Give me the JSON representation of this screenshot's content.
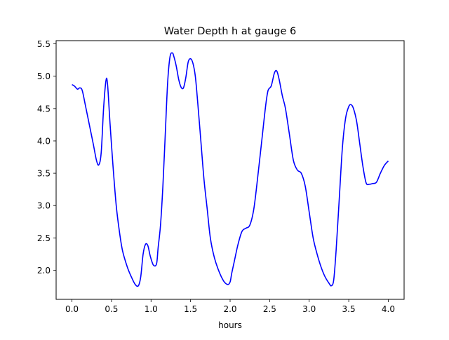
{
  "chart_data": {
    "type": "line",
    "title": "Water Depth h at gauge 6",
    "xlabel": "hours",
    "ylabel": "",
    "xlim": [
      -0.2,
      4.2
    ],
    "ylim": [
      1.55,
      5.55
    ],
    "xticks": [
      0.0,
      0.5,
      1.0,
      1.5,
      2.0,
      2.5,
      3.0,
      3.5,
      4.0
    ],
    "xtick_labels": [
      "0.0",
      "0.5",
      "1.0",
      "1.5",
      "2.0",
      "2.5",
      "3.0",
      "3.5",
      "4.0"
    ],
    "yticks": [
      2.0,
      2.5,
      3.0,
      3.5,
      4.0,
      4.5,
      5.0,
      5.5
    ],
    "ytick_labels": [
      "2.0",
      "2.5",
      "3.0",
      "3.5",
      "4.0",
      "4.5",
      "5.0",
      "5.5"
    ],
    "grid": false,
    "series": [
      {
        "color": "#0000ff",
        "x": [
          0.0,
          0.03,
          0.07,
          0.1,
          0.13,
          0.17,
          0.22,
          0.27,
          0.31,
          0.34,
          0.37,
          0.4,
          0.43,
          0.45,
          0.48,
          0.52,
          0.56,
          0.6,
          0.64,
          0.7,
          0.75,
          0.8,
          0.84,
          0.87,
          0.9,
          0.93,
          0.96,
          0.99,
          1.03,
          1.07,
          1.09,
          1.12,
          1.15,
          1.18,
          1.21,
          1.24,
          1.27,
          1.29,
          1.32,
          1.35,
          1.38,
          1.41,
          1.44,
          1.47,
          1.5,
          1.53,
          1.56,
          1.59,
          1.63,
          1.67,
          1.71,
          1.75,
          1.8,
          1.86,
          1.92,
          1.97,
          2.0,
          2.02,
          2.05,
          2.1,
          2.15,
          2.2,
          2.25,
          2.3,
          2.35,
          2.4,
          2.45,
          2.48,
          2.52,
          2.56,
          2.59,
          2.62,
          2.66,
          2.7,
          2.75,
          2.8,
          2.85,
          2.9,
          2.95,
          3.0,
          3.05,
          3.1,
          3.15,
          3.2,
          3.25,
          3.28,
          3.31,
          3.34,
          3.38,
          3.42,
          3.46,
          3.5,
          3.53,
          3.56,
          3.6,
          3.64,
          3.68,
          3.72,
          3.76,
          3.8,
          3.85,
          3.9,
          3.95,
          4.0
        ],
        "y": [
          4.87,
          4.85,
          4.8,
          4.82,
          4.78,
          4.55,
          4.25,
          3.95,
          3.7,
          3.63,
          3.82,
          4.5,
          4.93,
          4.88,
          4.3,
          3.6,
          3.0,
          2.6,
          2.3,
          2.05,
          1.9,
          1.78,
          1.76,
          1.9,
          2.25,
          2.4,
          2.38,
          2.22,
          2.08,
          2.1,
          2.35,
          2.7,
          3.3,
          4.1,
          4.9,
          5.3,
          5.36,
          5.3,
          5.15,
          4.95,
          4.83,
          4.82,
          4.98,
          5.22,
          5.27,
          5.2,
          5.0,
          4.6,
          4.0,
          3.4,
          2.95,
          2.5,
          2.2,
          1.98,
          1.83,
          1.78,
          1.82,
          1.95,
          2.12,
          2.4,
          2.6,
          2.65,
          2.7,
          2.95,
          3.45,
          4.0,
          4.55,
          4.78,
          4.85,
          5.05,
          5.08,
          4.95,
          4.7,
          4.5,
          4.1,
          3.7,
          3.55,
          3.5,
          3.3,
          2.9,
          2.5,
          2.25,
          2.05,
          1.9,
          1.8,
          1.76,
          1.85,
          2.3,
          3.1,
          3.9,
          4.35,
          4.53,
          4.56,
          4.5,
          4.3,
          3.95,
          3.6,
          3.35,
          3.33,
          3.34,
          3.36,
          3.5,
          3.62,
          3.69
        ]
      }
    ]
  }
}
